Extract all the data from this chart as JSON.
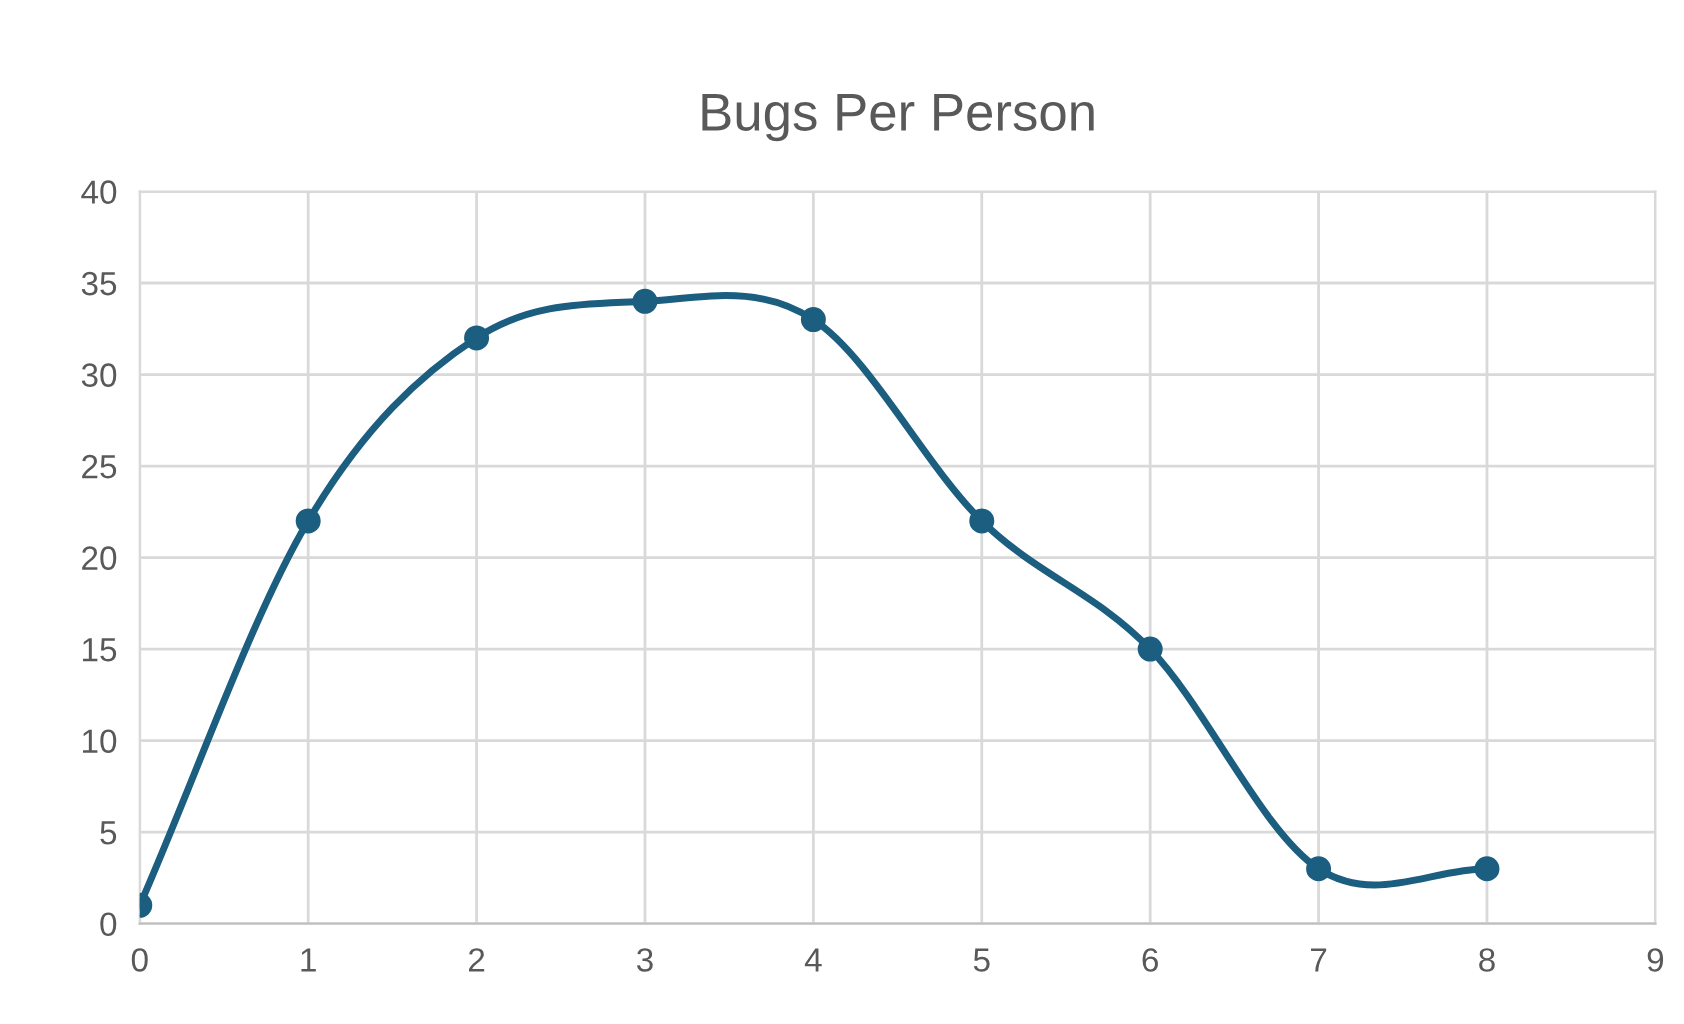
{
  "chart_data": {
    "type": "line",
    "title": "Bugs Per Person",
    "x": [
      0,
      1,
      2,
      3,
      4,
      5,
      6,
      7,
      8
    ],
    "series": [
      {
        "color": "#1b5e80",
        "values": [
          1,
          22,
          32,
          34,
          33,
          22,
          15,
          3,
          3
        ]
      }
    ],
    "xlim": [
      0,
      9
    ],
    "xticks": [
      0,
      1,
      2,
      3,
      4,
      5,
      6,
      7,
      8,
      9
    ],
    "ylim": [
      0,
      40
    ],
    "yticks": [
      0,
      5,
      10,
      15,
      20,
      25,
      30,
      35,
      40
    ],
    "grid": true,
    "marker": "circle",
    "line_style": "solid"
  }
}
